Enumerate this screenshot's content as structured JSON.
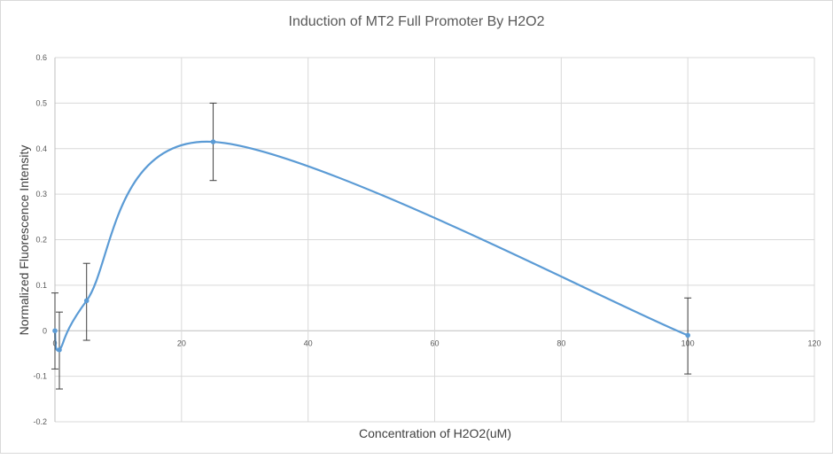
{
  "chart_data": {
    "type": "scatter",
    "title": "Induction of MT2 Full Promoter By H2O2",
    "xlabel": "Concentration of H2O2(uM)",
    "ylabel": "Normalized Fluorescence Intensity",
    "xlim": [
      0,
      120
    ],
    "ylim": [
      -0.2,
      0.6
    ],
    "xticks": [
      0,
      20,
      40,
      60,
      80,
      100,
      120
    ],
    "yticks": [
      -0.2,
      -0.1,
      0,
      0.1,
      0.2,
      0.3,
      0.4,
      0.5,
      0.6
    ],
    "grid": true,
    "smooth_line": true,
    "series": [
      {
        "name": "MT2 Full Promoter",
        "color": "#5b9bd5",
        "x": [
          0,
          0.7,
          5,
          25,
          100
        ],
        "y": [
          0,
          -0.042,
          0.066,
          0.415,
          -0.01
        ],
        "err_upper": [
          0.083,
          0.041,
          0.148,
          0.5,
          0.072
        ],
        "err_lower": [
          -0.084,
          -0.128,
          -0.021,
          0.33,
          -0.095
        ]
      }
    ]
  }
}
